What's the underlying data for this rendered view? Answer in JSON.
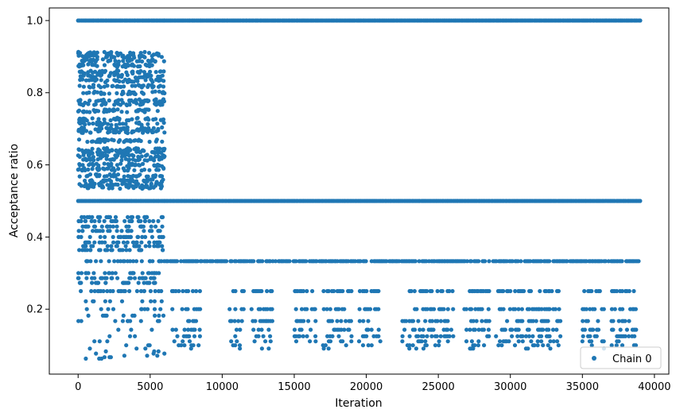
{
  "chart_data": {
    "type": "scatter",
    "title": "",
    "xlabel": "Iteration",
    "ylabel": "Acceptance ratio",
    "xlim": [
      -2000,
      41000
    ],
    "ylim": [
      0.02,
      1.035
    ],
    "xticks": [
      0,
      5000,
      10000,
      15000,
      20000,
      25000,
      30000,
      35000,
      40000
    ],
    "xtick_labels": [
      "0",
      "5000",
      "10000",
      "15000",
      "20000",
      "25000",
      "30000",
      "35000",
      "40000"
    ],
    "yticks": [
      0.2,
      0.4,
      0.6,
      0.8,
      1.0
    ],
    "ytick_labels": [
      "0.2",
      "0.4",
      "0.6",
      "0.8",
      "1.0"
    ],
    "grid": false,
    "legend": {
      "placement": "lower-right",
      "entries": [
        "Chain 0"
      ]
    },
    "marker_color": "#1f77b4",
    "series": [
      {
        "name": "Chain 0",
        "segments": [
          {
            "x_range": [
              0,
              6000
            ],
            "levels": [
              1.0,
              0.5
            ],
            "fill": "dense",
            "note": "near-continuous band"
          },
          {
            "x_range": [
              0,
              6000
            ],
            "levels": [
              0.909,
              0.9,
              0.889,
              0.875,
              0.857,
              0.846,
              0.833,
              0.818,
              0.8,
              0.778,
              0.769,
              0.75,
              0.727,
              0.714,
              0.7,
              0.692,
              0.667,
              0.643,
              0.636,
              0.625,
              0.615,
              0.6,
              0.588,
              0.571,
              0.556,
              0.545,
              0.538,
              0.455,
              0.444,
              0.429,
              0.417,
              0.4,
              0.385,
              0.375,
              0.364,
              0.333,
              0.3,
              0.286,
              0.273,
              0.25,
              0.222,
              0.2,
              0.182,
              0.167,
              0.143,
              0.125,
              0.111,
              0.1,
              0.091,
              0.083,
              0.077,
              0.071,
              0.067,
              0.063
            ],
            "fill": "scattered"
          },
          {
            "x_range": [
              6000,
              39000
            ],
            "levels": [
              1.0,
              0.5
            ],
            "fill": "dense"
          },
          {
            "x_range": [
              6000,
              39000
            ],
            "levels": [
              0.333
            ],
            "fill": "frequent"
          },
          {
            "x_range": [
              6000,
              39000
            ],
            "levels": [
              0.25,
              0.2,
              0.167,
              0.143,
              0.125,
              0.111,
              0.1,
              0.091
            ],
            "fill": "clustered"
          }
        ]
      }
    ]
  }
}
